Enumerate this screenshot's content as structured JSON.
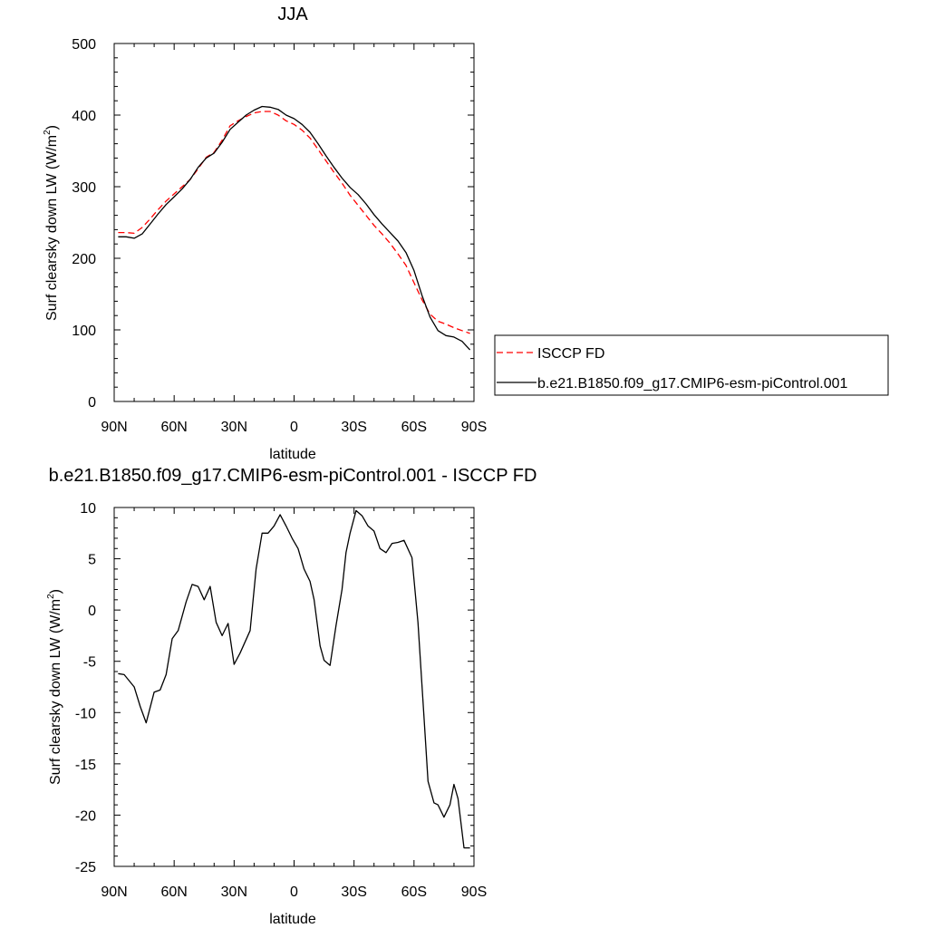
{
  "chart_data": [
    {
      "type": "line",
      "title": "JJA",
      "xlabel": "latitude",
      "ylabel": "Surf clearsky down LW (W/m",
      "ylabel_sup": "2",
      "ylabel_end": ")",
      "xlim": [
        90,
        -90
      ],
      "ylim": [
        0,
        500
      ],
      "xticks": [
        90,
        60,
        30,
        0,
        -30,
        -60,
        -90
      ],
      "xtick_labels": [
        "90N",
        "60N",
        "30N",
        "0",
        "30S",
        "60S",
        "90S"
      ],
      "yticks": [
        0,
        100,
        200,
        300,
        400,
        500
      ],
      "ytick_labels": [
        "0",
        "100",
        "200",
        "300",
        "400",
        "500"
      ],
      "legend_position": "right",
      "series": [
        {
          "name": "ISCCP FD",
          "color": "#ff0000",
          "dash": "dashed",
          "x": [
            88,
            84,
            80,
            76,
            72,
            68,
            64,
            60,
            56,
            52,
            48,
            44,
            40,
            36,
            32,
            28,
            24,
            20,
            16,
            12,
            8,
            4,
            0,
            -4,
            -8,
            -12,
            -16,
            -20,
            -24,
            -28,
            -32,
            -36,
            -40,
            -44,
            -48,
            -52,
            -56,
            -60,
            -64,
            -68,
            -72,
            -76,
            -80,
            -84,
            -88
          ],
          "y": [
            236,
            236,
            235,
            243,
            255,
            268,
            280,
            290,
            300,
            310,
            325,
            341,
            348,
            365,
            385,
            392,
            398,
            403,
            405,
            405,
            400,
            392,
            387,
            379,
            368,
            352,
            336,
            320,
            305,
            288,
            274,
            260,
            246,
            234,
            221,
            206,
            190,
            166,
            142,
            122,
            112,
            108,
            103,
            99,
            95
          ]
        },
        {
          "name": "b.e21.B1850.f09_g17.CMIP6-esm-piControl.001",
          "color": "#000000",
          "dash": "solid",
          "x": [
            88,
            84,
            80,
            76,
            72,
            68,
            64,
            60,
            56,
            52,
            48,
            44,
            40,
            36,
            32,
            28,
            24,
            20,
            16,
            12,
            8,
            4,
            0,
            -4,
            -8,
            -12,
            -16,
            -20,
            -24,
            -28,
            -32,
            -36,
            -40,
            -44,
            -48,
            -52,
            -56,
            -60,
            -64,
            -68,
            -72,
            -76,
            -80,
            -84,
            -88
          ],
          "y": [
            230,
            230,
            228,
            234,
            248,
            262,
            275,
            286,
            297,
            310,
            327,
            340,
            347,
            362,
            380,
            390,
            400,
            407,
            412,
            411,
            408,
            400,
            395,
            387,
            376,
            360,
            343,
            327,
            312,
            299,
            289,
            276,
            261,
            248,
            236,
            224,
            208,
            183,
            148,
            118,
            99,
            92,
            90,
            84,
            72
          ]
        }
      ]
    },
    {
      "type": "line",
      "title": "b.e21.B1850.f09_g17.CMIP6-esm-piControl.001 - ISCCP FD",
      "xlabel": "latitude",
      "ylabel": "Surf clearsky down LW (W/m",
      "ylabel_sup": "2",
      "ylabel_end": ")",
      "xlim": [
        90,
        -90
      ],
      "ylim": [
        -25,
        10
      ],
      "xticks": [
        90,
        60,
        30,
        0,
        -30,
        -60,
        -90
      ],
      "xtick_labels": [
        "90N",
        "60N",
        "30N",
        "0",
        "30S",
        "60S",
        "90S"
      ],
      "yticks": [
        10,
        5,
        0,
        -5,
        -10,
        -15,
        -20,
        -25
      ],
      "ytick_labels": [
        "10",
        "5",
        "0",
        "-5",
        "-10",
        "-15",
        "-20",
        "-25"
      ],
      "series": [
        {
          "name": "",
          "color": "#000000",
          "dash": "solid",
          "x": [
            88,
            85,
            80,
            77,
            74,
            70,
            67,
            64,
            61,
            58,
            54,
            51,
            48,
            45,
            42,
            39,
            36,
            33,
            30,
            27,
            22,
            19,
            16,
            13,
            10,
            7,
            4,
            1,
            -2,
            -5,
            -8,
            -10,
            -13,
            -15,
            -18,
            -21,
            -24,
            -26,
            -28,
            -31,
            -34,
            -37,
            -40,
            -43,
            -46,
            -49,
            -52,
            -55,
            -59,
            -62,
            -65,
            -67,
            -70,
            -72,
            -75,
            -78,
            -80,
            -82,
            -85,
            -88
          ],
          "y": [
            -6.2,
            -6.3,
            -7.5,
            -9.4,
            -11.0,
            -8.0,
            -7.8,
            -6.3,
            -2.8,
            -2.0,
            0.8,
            2.5,
            2.3,
            1.0,
            2.3,
            -1.2,
            -2.5,
            -1.3,
            -5.3,
            -4.2,
            -2.0,
            4.0,
            7.5,
            7.5,
            8.2,
            9.3,
            8.2,
            7.0,
            6.0,
            4.0,
            2.8,
            1.0,
            -3.5,
            -4.9,
            -5.4,
            -1.5,
            2.0,
            5.6,
            7.5,
            9.7,
            9.2,
            8.2,
            7.7,
            6.0,
            5.6,
            6.5,
            6.6,
            6.8,
            5.1,
            -1.2,
            -10.5,
            -16.7,
            -18.8,
            -19.0,
            -20.2,
            -19.0,
            -17.0,
            -18.4,
            -23.2,
            -23.2
          ]
        }
      ]
    }
  ]
}
